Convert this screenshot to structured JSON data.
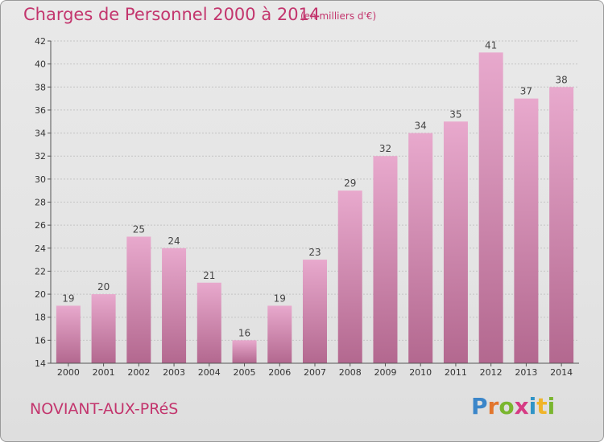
{
  "header": {
    "title": "Charges de Personnel 2000 à 2014",
    "subtitle": "(en milliers d'€)"
  },
  "footer": {
    "commune": "NOVIANT-AUX-PRéS",
    "logo_text": "Proxiti"
  },
  "colors": {
    "title": "#c3356d",
    "bar_top": "#e8a9cd",
    "bar_bottom": "#b3688f",
    "background": "#e6e6e6"
  },
  "chart_data": {
    "type": "bar",
    "title": "Charges de Personnel 2000 à 2014",
    "subtitle": "(en milliers d'€)",
    "categories": [
      "2000",
      "2001",
      "2002",
      "2003",
      "2004",
      "2005",
      "2006",
      "2007",
      "2008",
      "2009",
      "2010",
      "2011",
      "2012",
      "2013",
      "2014"
    ],
    "values": [
      19,
      20,
      25,
      24,
      21,
      16,
      19,
      23,
      29,
      32,
      34,
      35,
      41,
      37,
      38
    ],
    "ylim": [
      14,
      42
    ],
    "yticks": [
      14,
      16,
      18,
      20,
      22,
      24,
      26,
      28,
      30,
      32,
      34,
      36,
      38,
      40,
      42
    ],
    "grid": true,
    "data_labels": true
  }
}
